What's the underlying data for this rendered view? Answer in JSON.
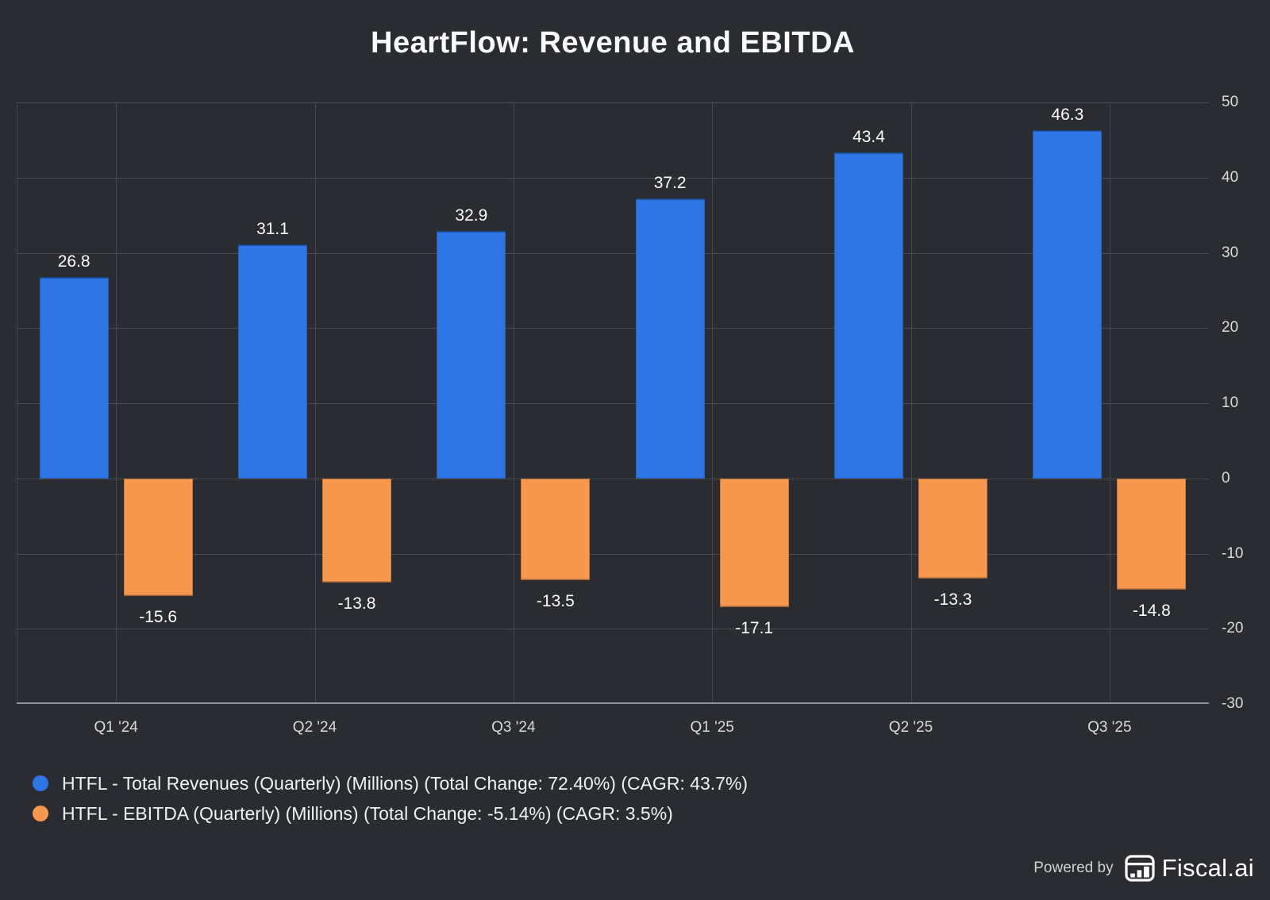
{
  "title": "HeartFlow: Revenue and EBITDA",
  "chart_data": {
    "type": "bar",
    "categories": [
      "Q1 '24",
      "Q2 '24",
      "Q3 '24",
      "Q1 '25",
      "Q2 '25",
      "Q3 '25"
    ],
    "series": [
      {
        "name": "HTFL - Total Revenues (Quarterly) (Millions) (Total Change: 72.40%) (CAGR: 43.7%)",
        "color": "#2e75e6",
        "values": [
          26.8,
          31.1,
          32.9,
          37.2,
          43.4,
          46.3
        ]
      },
      {
        "name": "HTFL - EBITDA (Quarterly) (Millions) (Total Change: -5.14%) (CAGR: 3.5%)",
        "color": "#f8984e",
        "values": [
          -15.6,
          -13.8,
          -13.5,
          -17.1,
          -13.3,
          -14.8
        ]
      }
    ],
    "ylim": [
      -30,
      50
    ],
    "y_ticks": [
      50,
      40,
      30,
      20,
      10,
      0,
      -10,
      -20,
      -30
    ],
    "grid": true,
    "value_labels": true,
    "legend_position": "bottom-left"
  },
  "footer": {
    "powered_by": "Powered by",
    "brand": "Fiscal.ai",
    "logo_icon": "fiscal-bar-table-icon"
  },
  "colors": {
    "background": "#2a2c31",
    "revenue_bar": "#2e75e6",
    "ebitda_bar": "#f8984e",
    "gridline": "#4a4d52",
    "axis_line": "#8d9095",
    "tick_text": "#d9dadc",
    "value_text": "#fbfcfd",
    "title_text": "#fafbfc",
    "legend_text": "#eef0f2",
    "powered_by_text": "#cfd1d4"
  }
}
